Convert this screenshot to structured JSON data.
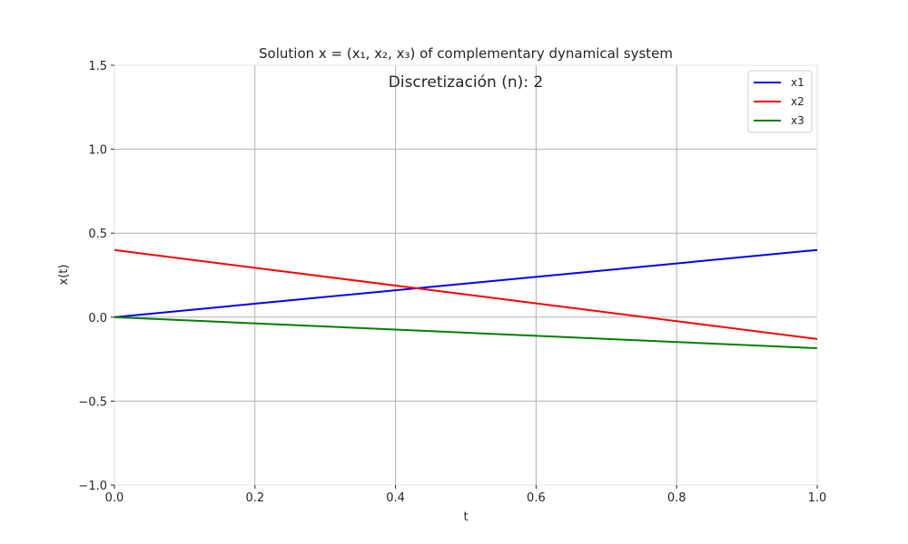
{
  "chart_data": {
    "type": "line",
    "title": "Solution x = (x₁, x₂, x₃) of complementary dynamical system",
    "annotation": "Discretización (n): 2",
    "xlabel": "t",
    "ylabel": "x(t)",
    "xlim": [
      0.0,
      1.0
    ],
    "ylim": [
      -1.0,
      1.5
    ],
    "xticks": [
      0.0,
      0.2,
      0.4,
      0.6,
      0.8,
      1.0
    ],
    "xtick_labels": [
      "0.0",
      "0.2",
      "0.4",
      "0.6",
      "0.8",
      "1.0"
    ],
    "yticks": [
      -1.0,
      -0.5,
      0.0,
      0.5,
      1.0,
      1.5
    ],
    "ytick_labels": [
      "−1.0",
      "−0.5",
      "0.0",
      "0.5",
      "1.0",
      "1.5"
    ],
    "grid": true,
    "legend_position": "top-right",
    "series": [
      {
        "name": "x1",
        "color": "#0000ff",
        "x": [
          0.0,
          1.0
        ],
        "y": [
          0.0,
          0.4
        ]
      },
      {
        "name": "x2",
        "color": "#ff0000",
        "x": [
          0.0,
          1.0
        ],
        "y": [
          0.4,
          -0.13
        ]
      },
      {
        "name": "x3",
        "color": "#008000",
        "x": [
          0.0,
          1.0
        ],
        "y": [
          0.0,
          -0.185
        ]
      }
    ]
  }
}
